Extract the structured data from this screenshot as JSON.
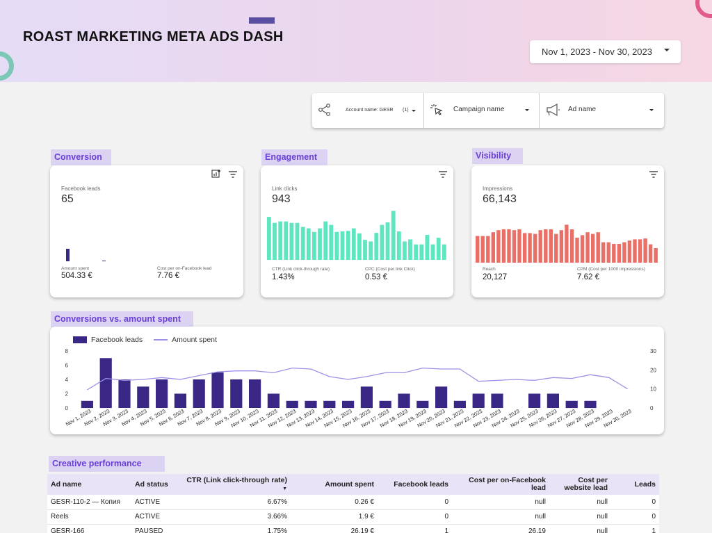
{
  "header": {
    "title": "ROAST MARKETING META ADS DASH",
    "date_range": "Nov 1, 2023 - Nov 30, 2023"
  },
  "filters": [
    {
      "label": "Account name: GESR",
      "count": "(1)",
      "icon": "share-icon"
    },
    {
      "label": "Campaign name",
      "icon": "cursor-click-icon"
    },
    {
      "label": "Ad name",
      "icon": "megaphone-icon"
    }
  ],
  "conversion": {
    "tag": "Conversion",
    "main_label": "Facebook leads",
    "main_value": "65",
    "sub1_label": "Amount spent",
    "sub1_value": "504.33 €",
    "sub2_label": "Cost per on-Facebook lead",
    "sub2_value": "7.76 €"
  },
  "engagement": {
    "tag": "Engagement",
    "main_label": "Link clicks",
    "main_value": "943",
    "sub1_label": "CTR (Link click-through rate)",
    "sub1_value": "1.43%",
    "sub2_label": "CPC (Cost per link Click)",
    "sub2_value": "0.53 €",
    "spark": [
      0.86,
      0.74,
      0.77,
      0.77,
      0.74,
      0.74,
      0.66,
      0.63,
      0.56,
      0.63,
      0.77,
      0.7,
      0.56,
      0.57,
      0.58,
      0.63,
      0.53,
      0.4,
      0.37,
      0.54,
      0.7,
      0.75,
      0.98,
      0.57,
      0.37,
      0.41,
      0.31,
      0.31,
      0.5,
      0.31,
      0.44,
      0.31
    ]
  },
  "visibility": {
    "tag": "Visibility",
    "main_label": "Impressions",
    "main_value": "66,143",
    "sub1_label": "Reach",
    "sub1_value": "20,127",
    "sub2_label": "CPM (Cost per 1000 impressions)",
    "sub2_value": "7.62 €",
    "spark": [
      0.64,
      0.64,
      0.64,
      0.73,
      0.78,
      0.8,
      0.8,
      0.78,
      0.8,
      0.71,
      0.71,
      0.69,
      0.78,
      0.8,
      0.8,
      0.69,
      0.78,
      0.91,
      0.8,
      0.6,
      0.66,
      0.73,
      0.69,
      0.73,
      0.49,
      0.49,
      0.45,
      0.45,
      0.49,
      0.53,
      0.56,
      0.56,
      0.58,
      0.44,
      0.35
    ]
  },
  "colors": {
    "leads": "#3a2785",
    "teal": "#5ee6c0",
    "salmon": "#ea6f66",
    "line": "#9f8fe6",
    "tag_bg": "#dcd3f3",
    "tag_text": "#6a3fd8"
  },
  "combo": {
    "tag": "Conversions vs. amount spent",
    "legend_bars": "Facebook leads",
    "legend_line": "Amount spent",
    "left_ticks": [
      "8",
      "6",
      "4",
      "2",
      "0"
    ],
    "right_ticks": [
      "30",
      "20",
      "10",
      "0"
    ]
  },
  "chart_data": {
    "type": "bar",
    "title": "",
    "categories": [
      "Nov 1, 2023",
      "Nov 2, 2023",
      "Nov 3, 2023",
      "Nov 4, 2023",
      "Nov 5, 2023",
      "Nov 6, 2023",
      "Nov 7, 2023",
      "Nov 8, 2023",
      "Nov 9, 2023",
      "Nov 10, 2023",
      "Nov 11, 2023",
      "Nov 12, 2023",
      "Nov 13, 2023",
      "Nov 14, 2023",
      "Nov 15, 2023",
      "Nov 16, 2023",
      "Nov 17, 2023",
      "Nov 18, 2023",
      "Nov 19, 2023",
      "Nov 20, 2023",
      "Nov 21, 2023",
      "Nov 22, 2023",
      "Nov 23, 2023",
      "Nov 24, 2023",
      "Nov 25, 2023",
      "Nov 26, 2023",
      "Nov 27, 2023",
      "Nov 28, 2023",
      "Nov 29, 2023",
      "Nov 30, 2023"
    ],
    "series": [
      {
        "name": "Facebook leads",
        "type": "bar",
        "axis": "left",
        "values": [
          1,
          7,
          4,
          3,
          4,
          2,
          4,
          5,
          4,
          4,
          2,
          1,
          1,
          1,
          1,
          3,
          1,
          2,
          1,
          3,
          1,
          2,
          2,
          0,
          2,
          2,
          1,
          1,
          0,
          0
        ]
      },
      {
        "name": "Amount spent",
        "type": "line",
        "axis": "right",
        "values": [
          9.5,
          15.5,
          14.5,
          15,
          16,
          15,
          17,
          19,
          19.5,
          19.5,
          18.5,
          21,
          20.5,
          16.5,
          15,
          16.5,
          18.5,
          18.5,
          21,
          20.5,
          20.5,
          14,
          14.5,
          15,
          14.5,
          16,
          15.5,
          17.5,
          16,
          10
        ]
      }
    ],
    "ylim_left": [
      0,
      8
    ],
    "ylim_right": [
      0,
      30
    ],
    "legend": "top-left",
    "grid": false
  },
  "table": {
    "tag": "Creative performance",
    "columns": [
      "Ad name",
      "Ad status",
      "CTR (Link click-through rate)",
      "Amount spent",
      "Facebook leads",
      "Cost per on-Facebook lead",
      "Cost per website lead",
      "Leads"
    ],
    "sort_indicator": "▼",
    "rows": [
      [
        "GESR-110-2 — Копия",
        "ACTIVE",
        "6.67%",
        "0.26 €",
        "0",
        "null",
        "null",
        "0"
      ],
      [
        "Reels",
        "ACTIVE",
        "3.66%",
        "1.9 €",
        "0",
        "null",
        "null",
        "0"
      ],
      [
        "GESR-166",
        "PAUSED",
        "1.75%",
        "26.19 €",
        "1",
        "26.19",
        "null",
        "1"
      ]
    ]
  }
}
